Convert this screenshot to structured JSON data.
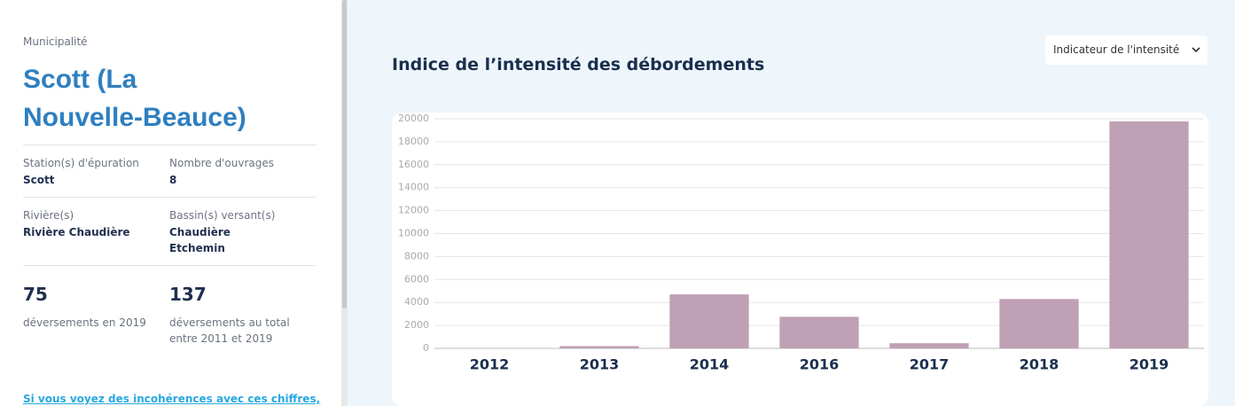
{
  "sidebar": {
    "label": "Municipalité",
    "name": "Scott (La Nouvelle-Beauce)",
    "fields": [
      {
        "label": "Station(s) d'épuration",
        "lines": [
          "Scott"
        ]
      },
      {
        "label": "Nombre d'ouvrages",
        "lines": [
          "8"
        ]
      },
      {
        "label": "Rivière(s)",
        "lines": [
          "Rivière Chaudière"
        ]
      },
      {
        "label": "Bassin(s) versant(s)",
        "lines": [
          "Chaudière",
          "Etchemin"
        ]
      }
    ],
    "stats": [
      {
        "value": "75",
        "label": "déversements en 2019"
      },
      {
        "value": "137",
        "label": "déversements au total entre 2011 et 2019"
      }
    ],
    "link": "Si vous voyez des incohérences avec ces chiffres,"
  },
  "dropdown": "Indicateur de l'intensité",
  "chart_data": {
    "type": "bar",
    "title": "Indice de l’intensité des débordements",
    "categories": [
      "2012",
      "2013",
      "2014",
      "2016",
      "2017",
      "2018",
      "2019"
    ],
    "values": [
      0,
      200,
      4700,
      2750,
      450,
      4300,
      19770
    ],
    "color": "#c0a0b4",
    "ylim": [
      0,
      20000
    ],
    "yticks": [
      0,
      2000,
      4000,
      6000,
      8000,
      10000,
      12000,
      14000,
      16000,
      18000,
      20000
    ],
    "grid": true
  }
}
